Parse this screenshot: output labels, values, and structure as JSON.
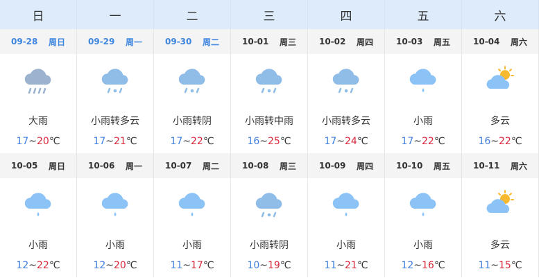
{
  "weekdays": [
    "日",
    "一",
    "二",
    "三",
    "四",
    "五",
    "六"
  ],
  "colors": {
    "low": "#3e7fe0",
    "high": "#d9283b",
    "current_date": "#3e86e0"
  },
  "weeks": [
    [
      {
        "date": "09-28",
        "day": "周日",
        "icon": "heavy-rain",
        "desc": "大雨",
        "low": "17",
        "high": "20",
        "unit": "℃",
        "current": true
      },
      {
        "date": "09-29",
        "day": "周一",
        "icon": "rain-to-cloudy",
        "desc": "小雨转多云",
        "low": "17",
        "high": "21",
        "unit": "℃",
        "current": true
      },
      {
        "date": "09-30",
        "day": "周二",
        "icon": "rain-to-cloudy",
        "desc": "小雨转阴",
        "low": "17",
        "high": "22",
        "unit": "℃",
        "current": true
      },
      {
        "date": "10-01",
        "day": "周三",
        "icon": "rain-to-cloudy",
        "desc": "小雨转中雨",
        "low": "16",
        "high": "25",
        "unit": "℃"
      },
      {
        "date": "10-02",
        "day": "周四",
        "icon": "rain-to-cloudy",
        "desc": "小雨转多云",
        "low": "17",
        "high": "24",
        "unit": "℃"
      },
      {
        "date": "10-03",
        "day": "周五",
        "icon": "light-rain",
        "desc": "小雨",
        "low": "17",
        "high": "22",
        "unit": "℃"
      },
      {
        "date": "10-04",
        "day": "周六",
        "icon": "partly-cloudy",
        "desc": "多云",
        "low": "16",
        "high": "22",
        "unit": "℃"
      }
    ],
    [
      {
        "date": "10-05",
        "day": "周日",
        "icon": "light-rain",
        "desc": "小雨",
        "low": "12",
        "high": "22",
        "unit": "℃"
      },
      {
        "date": "10-06",
        "day": "周一",
        "icon": "light-rain",
        "desc": "小雨",
        "low": "12",
        "high": "20",
        "unit": "℃"
      },
      {
        "date": "10-07",
        "day": "周二",
        "icon": "light-rain",
        "desc": "小雨",
        "low": "11",
        "high": "17",
        "unit": "℃"
      },
      {
        "date": "10-08",
        "day": "周三",
        "icon": "rain-to-cloudy",
        "desc": "小雨转阴",
        "low": "10",
        "high": "19",
        "unit": "℃"
      },
      {
        "date": "10-09",
        "day": "周四",
        "icon": "light-rain",
        "desc": "小雨",
        "low": "11",
        "high": "21",
        "unit": "℃"
      },
      {
        "date": "10-10",
        "day": "周五",
        "icon": "light-rain",
        "desc": "小雨",
        "low": "12",
        "high": "16",
        "unit": "℃"
      },
      {
        "date": "10-11",
        "day": "周六",
        "icon": "partly-cloudy",
        "desc": "多云",
        "low": "11",
        "high": "15",
        "unit": "℃"
      }
    ]
  ]
}
